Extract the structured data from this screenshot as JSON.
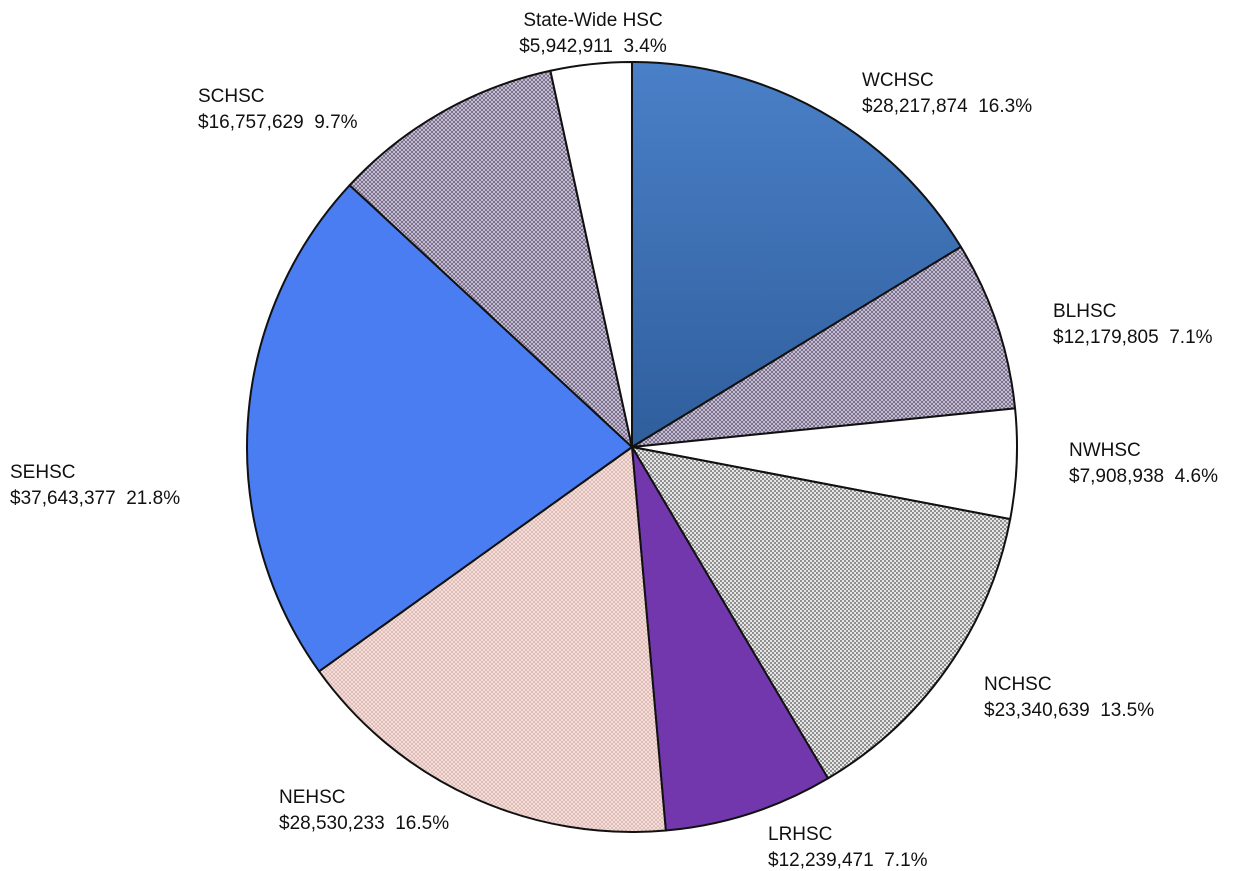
{
  "chart_data": {
    "type": "pie",
    "title": "",
    "slices": [
      {
        "label": "WCHSC",
        "value_text": "$28,217,874",
        "percent_text": "16.3%",
        "value": 28217874,
        "percent": 16.3,
        "color": "#3f72b6",
        "pattern": "solid"
      },
      {
        "label": "BLHSC",
        "value_text": "$12,179,805",
        "percent_text": "7.1%",
        "value": 12179805,
        "percent": 7.1,
        "color": "#c8c0d8",
        "pattern": "crosshatch"
      },
      {
        "label": "NWHSC",
        "value_text": "$7,908,938",
        "percent_text": "4.6%",
        "value": 7908938,
        "percent": 4.6,
        "color": "#ffffff",
        "pattern": "solid"
      },
      {
        "label": "NCHSC",
        "value_text": "$23,340,639",
        "percent_text": "13.5%",
        "value": 23340639,
        "percent": 13.5,
        "color": "#d3d3d3",
        "pattern": "checker"
      },
      {
        "label": "LRHSC",
        "value_text": "$12,239,471",
        "percent_text": "7.1%",
        "value": 12239471,
        "percent": 7.1,
        "color": "#7236ad",
        "pattern": "solid"
      },
      {
        "label": "NEHSC",
        "value_text": "$28,530,233",
        "percent_text": "16.5%",
        "value": 28530233,
        "percent": 16.5,
        "color": "#f6dcd8",
        "pattern": "fine-hatch"
      },
      {
        "label": "SEHSC",
        "value_text": "$37,643,377",
        "percent_text": "21.8%",
        "value": 37643377,
        "percent": 21.8,
        "color": "#4a7df2",
        "pattern": "solid"
      },
      {
        "label": "SCHSC",
        "value_text": "$16,757,629",
        "percent_text": "9.7%",
        "value": 16757629,
        "percent": 9.7,
        "color": "#c8c0d8",
        "pattern": "crosshatch"
      },
      {
        "label": "State-Wide HSC",
        "value_text": "$5,942,911",
        "percent_text": "3.4%",
        "value": 5942911,
        "percent": 3.4,
        "color": "#ffffff",
        "pattern": "solid"
      }
    ]
  }
}
